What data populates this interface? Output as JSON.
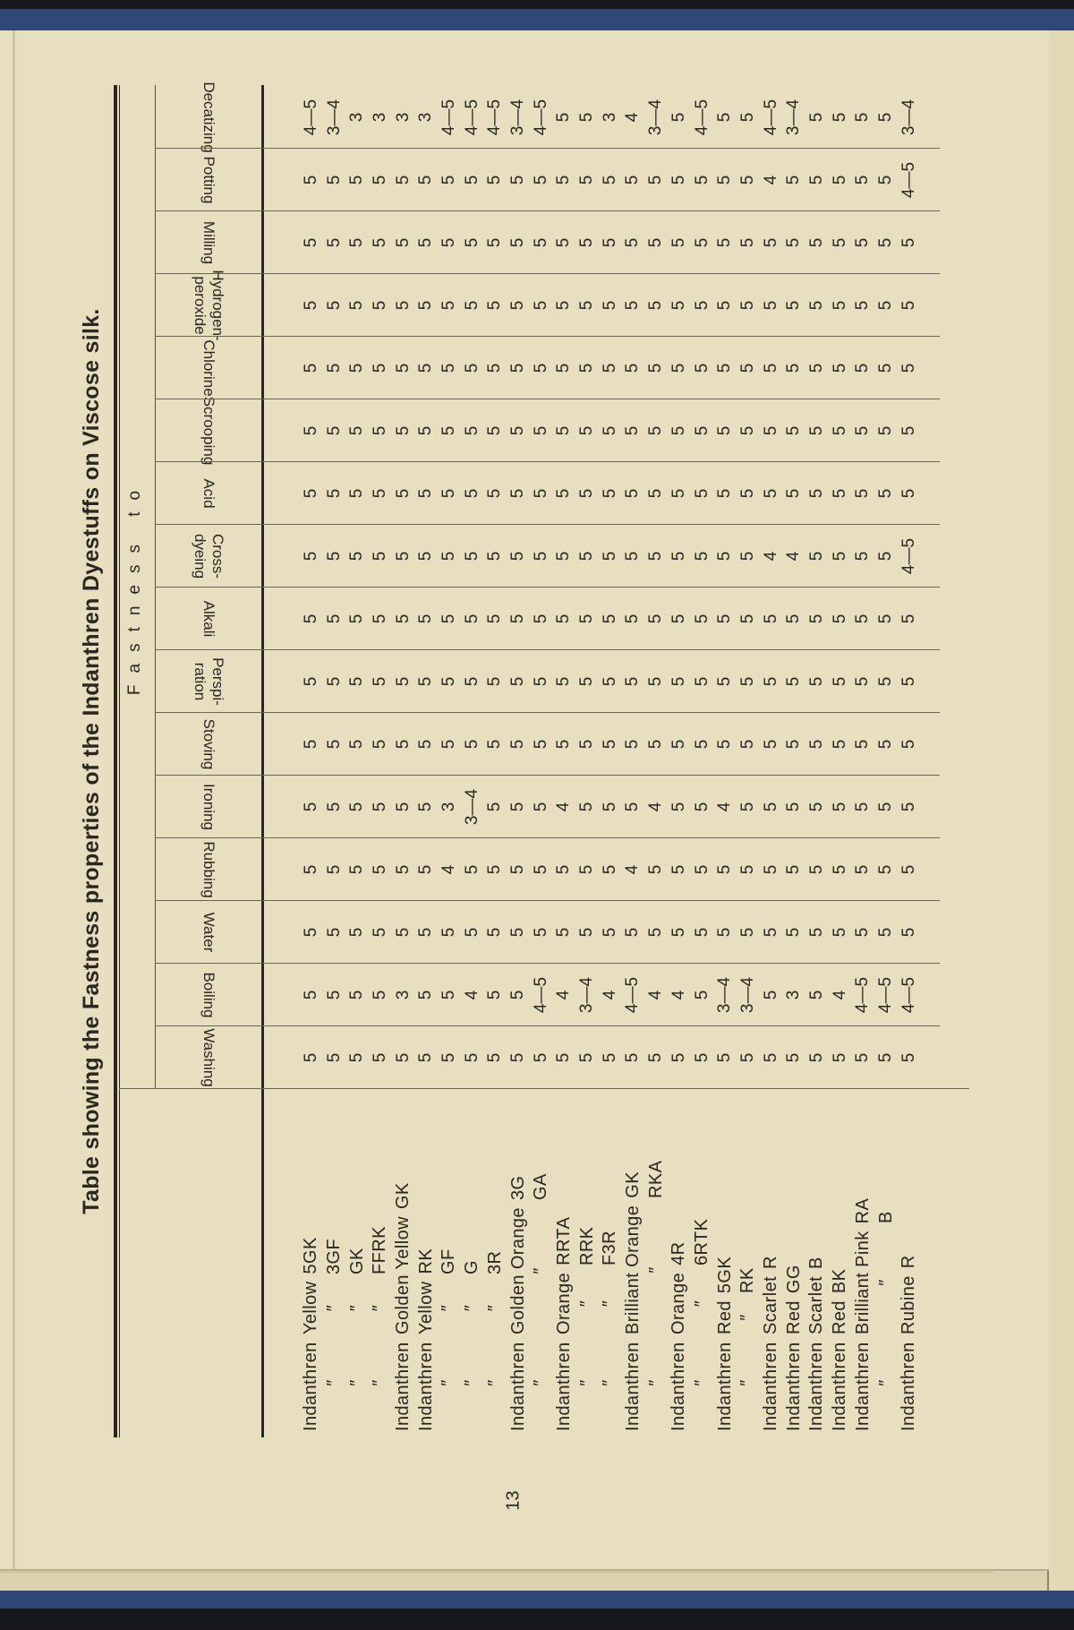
{
  "page": {
    "title": "Table showing the Fastness properties of the Indanthren Dyestuffs on Viscose silk.",
    "group_header": "Fastness to",
    "page_number": "13",
    "colors": {
      "paper": "#e8dfc0",
      "binding": "#2f4878",
      "ink": "#2b2721"
    }
  },
  "columns": [
    "Washing",
    "Boiling",
    "Water",
    "Rubbing",
    "Ironing",
    "Stoving",
    "Perspi-\nration",
    "Alkali",
    "Cross-\ndyeing",
    "Acid",
    "Scrooping",
    "Chlorine",
    "Hydrogen-\nperoxide",
    "Milling",
    "Potting",
    "Decatizing"
  ],
  "rows": [
    {
      "name": [
        "Indanthren",
        "Yellow",
        "5GK"
      ],
      "values": [
        "5",
        "5",
        "5",
        "5",
        "5",
        "5",
        "5",
        "5",
        "5",
        "5",
        "5",
        "5",
        "5",
        "5",
        "5",
        "4—5"
      ]
    },
    {
      "name": [
        "″",
        "″",
        "3GF"
      ],
      "values": [
        "5",
        "5",
        "5",
        "5",
        "5",
        "5",
        "5",
        "5",
        "5",
        "5",
        "5",
        "5",
        "5",
        "5",
        "5",
        "3—4"
      ]
    },
    {
      "name": [
        "″",
        "″",
        "GK"
      ],
      "values": [
        "5",
        "5",
        "5",
        "5",
        "5",
        "5",
        "5",
        "5",
        "5",
        "5",
        "5",
        "5",
        "5",
        "5",
        "5",
        "3"
      ]
    },
    {
      "name": [
        "″",
        "″",
        "FFRK"
      ],
      "values": [
        "5",
        "5",
        "5",
        "5",
        "5",
        "5",
        "5",
        "5",
        "5",
        "5",
        "5",
        "5",
        "5",
        "5",
        "5",
        "3"
      ]
    },
    {
      "name": [
        "Indanthren",
        "Golden Yellow",
        "GK"
      ],
      "values": [
        "5",
        "3",
        "5",
        "5",
        "5",
        "5",
        "5",
        "5",
        "5",
        "5",
        "5",
        "5",
        "5",
        "5",
        "5",
        "3"
      ]
    },
    {
      "name": [
        "Indanthren",
        "Yellow",
        "RK"
      ],
      "values": [
        "5",
        "5",
        "5",
        "5",
        "5",
        "5",
        "5",
        "5",
        "5",
        "5",
        "5",
        "5",
        "5",
        "5",
        "5",
        "3"
      ]
    },
    {
      "name": [
        "″",
        "″",
        "GF"
      ],
      "values": [
        "5",
        "5",
        "5",
        "4",
        "3",
        "5",
        "5",
        "5",
        "5",
        "5",
        "5",
        "5",
        "5",
        "5",
        "5",
        "4—5"
      ]
    },
    {
      "name": [
        "″",
        "″",
        "G"
      ],
      "values": [
        "5",
        "4",
        "5",
        "5",
        "3—4",
        "5",
        "5",
        "5",
        "5",
        "5",
        "5",
        "5",
        "5",
        "5",
        "5",
        "4—5"
      ]
    },
    {
      "name": [
        "″",
        "″",
        "3R"
      ],
      "values": [
        "5",
        "5",
        "5",
        "5",
        "5",
        "5",
        "5",
        "5",
        "5",
        "5",
        "5",
        "5",
        "5",
        "5",
        "5",
        "4—5"
      ]
    },
    {
      "name": [
        "Indanthren",
        "Golden Orange",
        "3G"
      ],
      "values": [
        "5",
        "5",
        "5",
        "5",
        "5",
        "5",
        "5",
        "5",
        "5",
        "5",
        "5",
        "5",
        "5",
        "5",
        "5",
        "3—4"
      ]
    },
    {
      "name": [
        "″",
        "″",
        "GA"
      ],
      "values": [
        "5",
        "4—5",
        "5",
        "5",
        "5",
        "5",
        "5",
        "5",
        "5",
        "5",
        "5",
        "5",
        "5",
        "5",
        "5",
        "4—5"
      ]
    },
    {
      "name": [
        "Indanthren",
        "Orange",
        "RRTA"
      ],
      "values": [
        "5",
        "4",
        "5",
        "5",
        "4",
        "5",
        "5",
        "5",
        "5",
        "5",
        "5",
        "5",
        "5",
        "5",
        "5",
        "5"
      ]
    },
    {
      "name": [
        "″",
        "″",
        "RRK"
      ],
      "values": [
        "5",
        "3—4",
        "5",
        "5",
        "5",
        "5",
        "5",
        "5",
        "5",
        "5",
        "5",
        "5",
        "5",
        "5",
        "5",
        "5"
      ]
    },
    {
      "name": [
        "″",
        "″",
        "F3R"
      ],
      "values": [
        "5",
        "4",
        "5",
        "5",
        "5",
        "5",
        "5",
        "5",
        "5",
        "5",
        "5",
        "5",
        "5",
        "5",
        "5",
        "3"
      ]
    },
    {
      "name": [
        "Indanthren",
        "Brilliant Orange",
        "GK"
      ],
      "values": [
        "5",
        "4—5",
        "5",
        "4",
        "5",
        "5",
        "5",
        "5",
        "5",
        "5",
        "5",
        "5",
        "5",
        "5",
        "5",
        "4"
      ]
    },
    {
      "name": [
        "″",
        "″",
        "RKA"
      ],
      "values": [
        "5",
        "4",
        "5",
        "5",
        "4",
        "5",
        "5",
        "5",
        "5",
        "5",
        "5",
        "5",
        "5",
        "5",
        "5",
        "3—4"
      ]
    },
    {
      "name": [
        "Indanthren",
        "Orange",
        "4R"
      ],
      "values": [
        "5",
        "4",
        "5",
        "5",
        "5",
        "5",
        "5",
        "5",
        "5",
        "5",
        "5",
        "5",
        "5",
        "5",
        "5",
        "5"
      ]
    },
    {
      "name": [
        "″",
        "″",
        "6RTK"
      ],
      "values": [
        "5",
        "5",
        "5",
        "5",
        "5",
        "5",
        "5",
        "5",
        "5",
        "5",
        "5",
        "5",
        "5",
        "5",
        "5",
        "4—5"
      ]
    },
    {
      "name": [
        "Indanthren",
        "Red",
        "5GK"
      ],
      "values": [
        "5",
        "3—4",
        "5",
        "5",
        "4",
        "5",
        "5",
        "5",
        "5",
        "5",
        "5",
        "5",
        "5",
        "5",
        "5",
        "5"
      ]
    },
    {
      "name": [
        "″",
        "″",
        "RK"
      ],
      "values": [
        "5",
        "3—4",
        "5",
        "5",
        "5",
        "5",
        "5",
        "5",
        "5",
        "5",
        "5",
        "5",
        "5",
        "5",
        "5",
        "5"
      ]
    },
    {
      "name": [
        "Indanthren",
        "Scarlet",
        "R"
      ],
      "values": [
        "5",
        "5",
        "5",
        "5",
        "5",
        "5",
        "5",
        "5",
        "4",
        "5",
        "5",
        "5",
        "5",
        "5",
        "4",
        "4—5"
      ]
    },
    {
      "name": [
        "Indanthren",
        "Red",
        "GG"
      ],
      "values": [
        "5",
        "3",
        "5",
        "5",
        "5",
        "5",
        "5",
        "5",
        "4",
        "5",
        "5",
        "5",
        "5",
        "5",
        "5",
        "3—4"
      ]
    },
    {
      "name": [
        "Indanthren",
        "Scarlet",
        "B"
      ],
      "values": [
        "5",
        "5",
        "5",
        "5",
        "5",
        "5",
        "5",
        "5",
        "5",
        "5",
        "5",
        "5",
        "5",
        "5",
        "5",
        "5"
      ]
    },
    {
      "name": [
        "Indanthren",
        "Red",
        "BK"
      ],
      "values": [
        "5",
        "4",
        "5",
        "5",
        "5",
        "5",
        "5",
        "5",
        "5",
        "5",
        "5",
        "5",
        "5",
        "5",
        "5",
        "5"
      ]
    },
    {
      "name": [
        "Indanthren",
        "Brilliant Pink",
        "RA"
      ],
      "values": [
        "5",
        "4—5",
        "5",
        "5",
        "5",
        "5",
        "5",
        "5",
        "5",
        "5",
        "5",
        "5",
        "5",
        "5",
        "5",
        "5"
      ]
    },
    {
      "name": [
        "″",
        "″",
        "B"
      ],
      "values": [
        "5",
        "4—5",
        "5",
        "5",
        "5",
        "5",
        "5",
        "5",
        "5",
        "5",
        "5",
        "5",
        "5",
        "5",
        "5",
        "5"
      ]
    },
    {
      "name": [
        "Indanthren",
        "Rubine",
        "R"
      ],
      "values": [
        "5",
        "4—5",
        "5",
        "5",
        "5",
        "5",
        "5",
        "5",
        "4—5",
        "5",
        "5",
        "5",
        "5",
        "5",
        "4—5",
        "3—4"
      ]
    }
  ]
}
